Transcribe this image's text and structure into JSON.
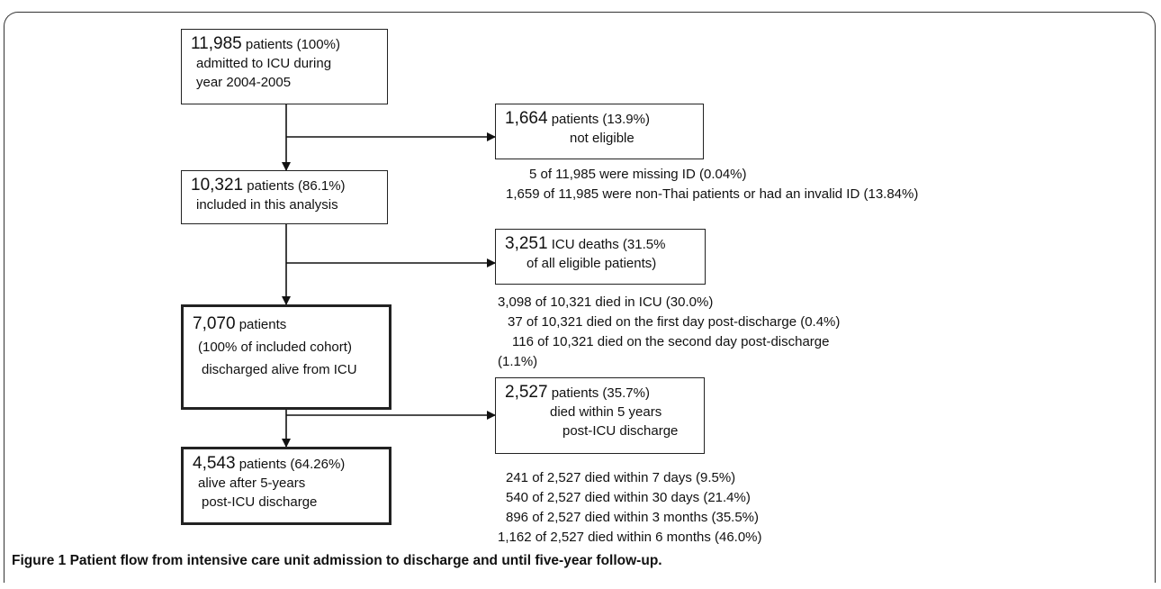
{
  "boxes": {
    "admitted": {
      "number": "11,985",
      "rest": "patients (100%)",
      "line2": "admitted to ICU during",
      "line3": "year 2004-2005"
    },
    "not_eligible": {
      "number": "1,664",
      "rest": "patients (13.9%)",
      "line2": "not eligible"
    },
    "included": {
      "number": "10,321",
      "rest": "patients (86.1%)",
      "line2": "included in this analysis"
    },
    "icu_deaths": {
      "number": "3,251",
      "rest": "ICU deaths  (31.5%",
      "line2": "of all eligible patients)"
    },
    "discharged": {
      "number": "7,070",
      "rest": "patients",
      "line2": "(100% of included cohort)",
      "line3": "discharged alive from ICU"
    },
    "died_5y": {
      "number": "2,527",
      "rest": "patients (35.7%)",
      "line2": "died within 5 years",
      "line3": "post-ICU discharge"
    },
    "alive_5y": {
      "number": "4,543",
      "rest": "patients (64.26%)",
      "line2": "alive after 5-years",
      "line3": "post-ICU discharge"
    }
  },
  "notes": {
    "not_eligible": [
      "5 of 11,985 were missing ID (0.04%)",
      "1,659 of 11,985 were non-Thai patients or had an invalid ID (13.84%)"
    ],
    "icu_deaths": [
      "3,098 of 10,321 died in ICU (30.0%)",
      "37 of 10,321 died on the first day post-discharge (0.4%)",
      "116 of 10,321 died on the second day post-discharge",
      "(1.1%)"
    ],
    "died_5y": [
      "241 of 2,527 died within 7 days (9.5%)",
      "540 of 2,527 died within 30 days (21.4%)",
      "896 of 2,527 died within 3 months (35.5%)",
      "1,162 of 2,527 died within 6 months (46.0%)"
    ]
  },
  "caption": "Figure 1 Patient flow from intensive care unit admission to discharge and until five-year follow-up."
}
